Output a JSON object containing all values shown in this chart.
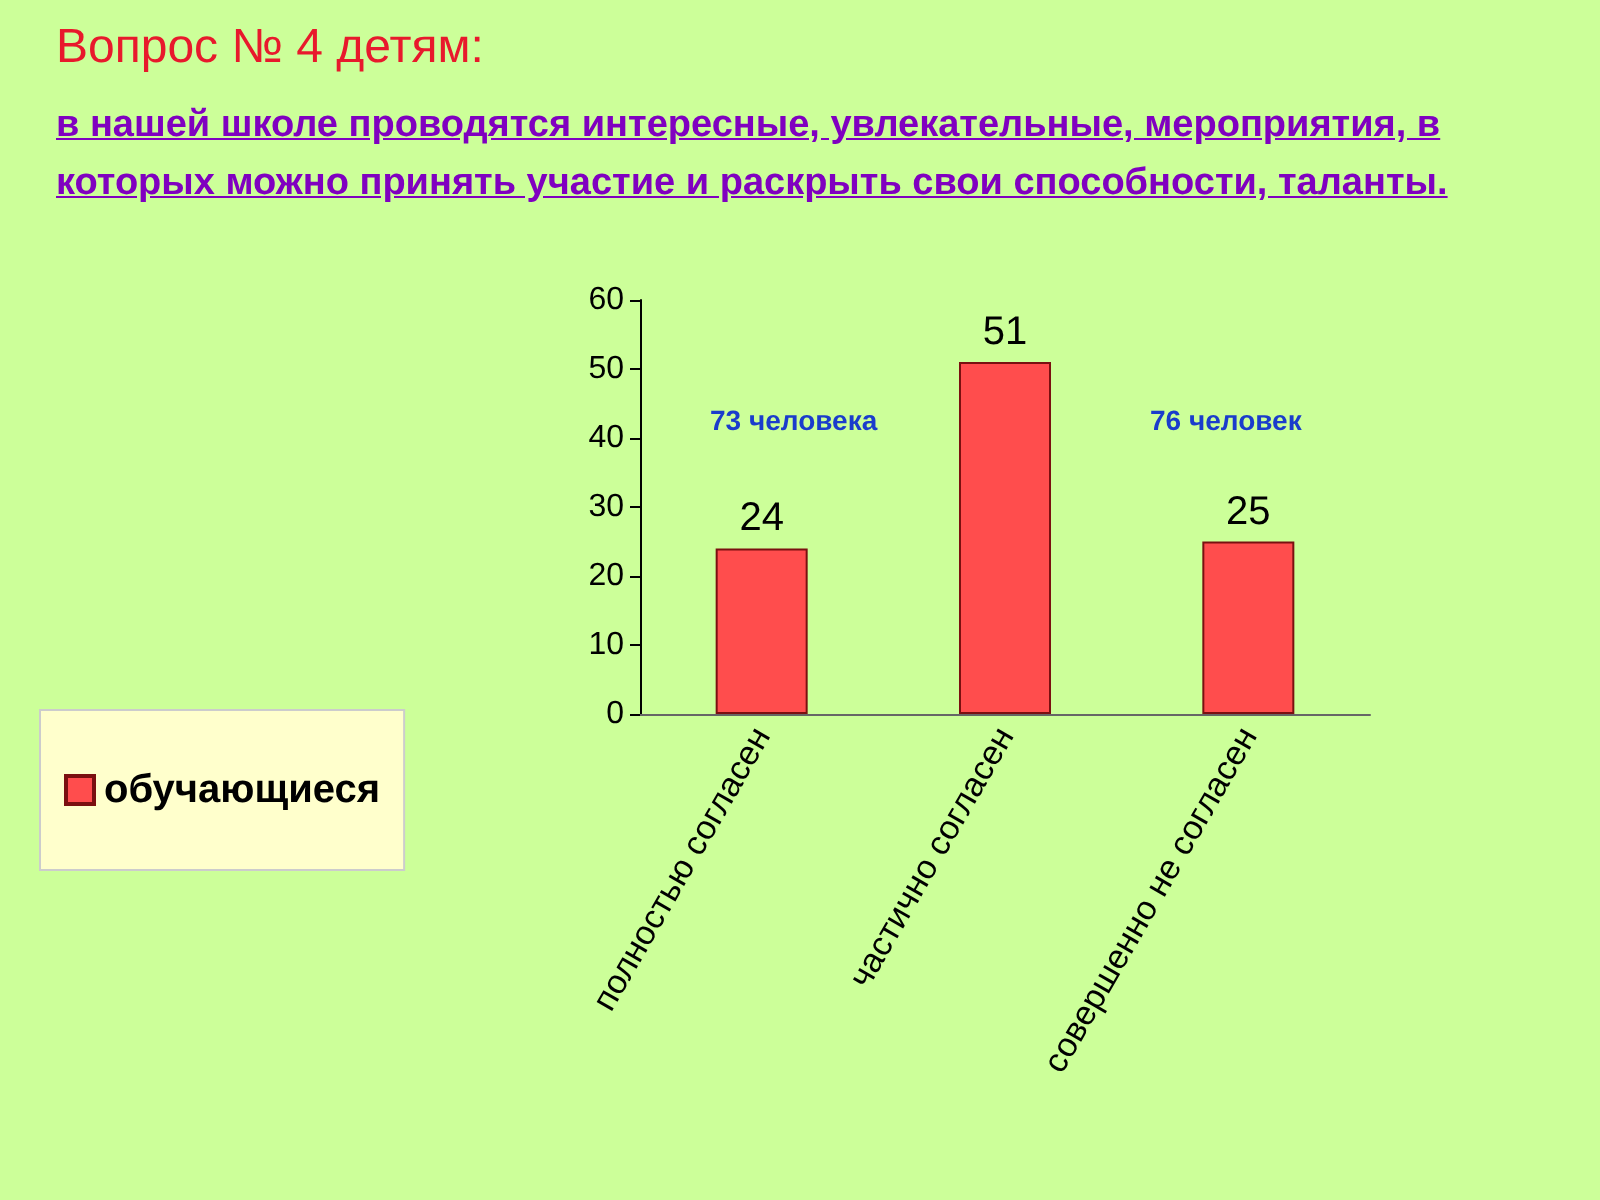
{
  "chart_data": {
    "type": "bar",
    "title": "Вопрос № 4 детям:",
    "subtitle": "в нашей школе проводятся интересные, увлекательные, мероприятия, в которых можно принять участие и раскрыть свои способности, таланты.",
    "categories": [
      "полностью согласен",
      "частично согласен",
      "совершенно не согласен"
    ],
    "series": [
      {
        "name": "обучающиеся",
        "color": "#ff4d4d",
        "values": [
          24,
          51,
          25
        ]
      }
    ],
    "ylim": [
      0,
      60
    ],
    "yticks": [
      0,
      10,
      20,
      30,
      40,
      50,
      60
    ],
    "data_labels": true,
    "legend": "left",
    "annotations": [
      "73 человека",
      "76 человек"
    ]
  }
}
